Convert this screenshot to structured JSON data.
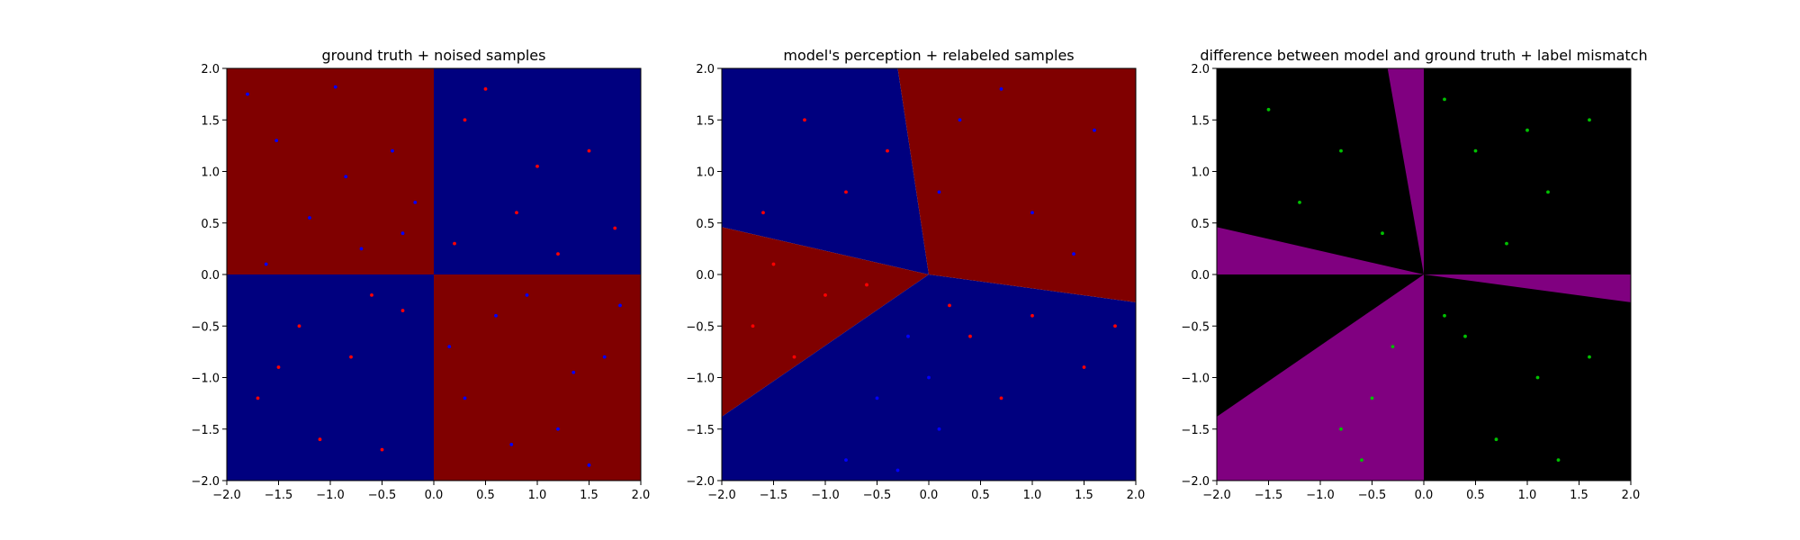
{
  "chart_data": [
    {
      "type": "scatter",
      "title": "ground truth + noised samples",
      "xlim": [
        -2.0,
        2.0
      ],
      "ylim": [
        -2.0,
        2.0
      ],
      "x_ticks": [
        "−2.0",
        "−1.5",
        "−1.0",
        "−0.5",
        "0.0",
        "0.5",
        "1.0",
        "1.5",
        "2.0"
      ],
      "y_ticks": [
        "−2.0",
        "−1.5",
        "−1.0",
        "−0.5",
        "0.0",
        "0.5",
        "1.0",
        "1.5",
        "2.0"
      ],
      "background_regions": [
        {
          "polygon": [
            [
              -2,
              0
            ],
            [
              0,
              0
            ],
            [
              0,
              2
            ],
            [
              -2,
              2
            ]
          ],
          "color": "#800000"
        },
        {
          "polygon": [
            [
              0,
              0
            ],
            [
              2,
              0
            ],
            [
              2,
              2
            ],
            [
              0,
              2
            ]
          ],
          "color": "#00007f"
        },
        {
          "polygon": [
            [
              -2,
              -2
            ],
            [
              0,
              -2
            ],
            [
              0,
              0
            ],
            [
              -2,
              0
            ]
          ],
          "color": "#00007f"
        },
        {
          "polygon": [
            [
              0,
              -2
            ],
            [
              2,
              -2
            ],
            [
              2,
              0
            ],
            [
              0,
              0
            ]
          ],
          "color": "#800000"
        }
      ],
      "series": [
        {
          "color": "#0000ff",
          "points": [
            [
              -1.8,
              1.75
            ],
            [
              -1.52,
              1.3
            ],
            [
              -1.2,
              0.55
            ],
            [
              -0.95,
              1.82
            ],
            [
              -0.7,
              0.25
            ],
            [
              -0.4,
              1.2
            ],
            [
              -0.18,
              0.7
            ],
            [
              -1.62,
              0.1
            ],
            [
              -0.85,
              0.95
            ],
            [
              -0.3,
              0.4
            ],
            [
              0.6,
              -0.4
            ],
            [
              1.2,
              -1.5
            ],
            [
              1.65,
              -0.8
            ],
            [
              0.3,
              -1.2
            ],
            [
              0.9,
              -0.2
            ],
            [
              1.5,
              -1.85
            ],
            [
              0.15,
              -0.7
            ],
            [
              1.8,
              -0.3
            ],
            [
              0.75,
              -1.65
            ],
            [
              1.35,
              -0.95
            ]
          ]
        },
        {
          "color": "#ff0000",
          "points": [
            [
              0.3,
              1.5
            ],
            [
              0.8,
              0.6
            ],
            [
              1.5,
              1.2
            ],
            [
              1.2,
              0.2
            ],
            [
              0.5,
              1.8
            ],
            [
              1.75,
              0.45
            ],
            [
              0.2,
              0.3
            ],
            [
              1.0,
              1.05
            ],
            [
              -1.3,
              -0.5
            ],
            [
              -0.5,
              -1.7
            ],
            [
              -0.8,
              -0.8
            ],
            [
              -1.7,
              -1.2
            ],
            [
              -0.3,
              -0.35
            ],
            [
              -1.1,
              -1.6
            ],
            [
              -0.6,
              -0.2
            ],
            [
              -1.5,
              -0.9
            ]
          ]
        }
      ]
    },
    {
      "type": "scatter",
      "title": "model's perception + relabeled samples",
      "xlim": [
        -2.0,
        2.0
      ],
      "ylim": [
        -2.0,
        2.0
      ],
      "x_ticks": [
        "−2.0",
        "−1.5",
        "−1.0",
        "−0.5",
        "0.0",
        "0.5",
        "1.0",
        "1.5",
        "2.0"
      ],
      "y_ticks": [
        "−2.0",
        "−1.5",
        "−1.0",
        "−0.5",
        "0.0",
        "0.5",
        "1.0",
        "1.5",
        "2.0"
      ],
      "background_regions": [
        {
          "polygon": [
            [
              0,
              0
            ],
            [
              -0.3,
              2
            ],
            [
              -2,
              2
            ],
            [
              -2,
              0.46
            ]
          ],
          "color": "#00007f"
        },
        {
          "polygon": [
            [
              0,
              0
            ],
            [
              -2,
              0.46
            ],
            [
              -2,
              -1.38
            ]
          ],
          "color": "#800000"
        },
        {
          "polygon": [
            [
              0,
              0
            ],
            [
              -2,
              -1.38
            ],
            [
              -2,
              -2
            ],
            [
              2,
              -2
            ],
            [
              2,
              -0.27
            ]
          ],
          "color": "#00007f"
        },
        {
          "polygon": [
            [
              0,
              0
            ],
            [
              2,
              -0.27
            ],
            [
              2,
              2
            ],
            [
              -0.3,
              2
            ]
          ],
          "color": "#800000"
        }
      ],
      "series": [
        {
          "color": "#ff0000",
          "points": [
            [
              -1.2,
              1.5
            ],
            [
              -0.8,
              0.8
            ],
            [
              -1.6,
              0.6
            ],
            [
              -0.4,
              1.2
            ],
            [
              -1.5,
              0.1
            ],
            [
              -1.0,
              -0.2
            ],
            [
              -1.7,
              -0.5
            ],
            [
              -0.6,
              -0.1
            ],
            [
              -1.3,
              -0.8
            ],
            [
              0.4,
              -0.6
            ],
            [
              1.0,
              -0.4
            ],
            [
              1.5,
              -0.9
            ],
            [
              0.7,
              -1.2
            ],
            [
              1.8,
              -0.5
            ],
            [
              0.2,
              -0.3
            ]
          ]
        },
        {
          "color": "#0000ff",
          "points": [
            [
              0.3,
              1.5
            ],
            [
              1.0,
              0.6
            ],
            [
              1.6,
              1.4
            ],
            [
              0.1,
              0.8
            ],
            [
              1.4,
              0.2
            ],
            [
              0.7,
              1.8
            ],
            [
              -0.2,
              -0.6
            ],
            [
              -0.5,
              -1.2
            ],
            [
              0.1,
              -1.5
            ],
            [
              -0.8,
              -1.8
            ],
            [
              0.0,
              -1.0
            ],
            [
              -0.3,
              -1.9
            ]
          ]
        }
      ]
    },
    {
      "type": "scatter",
      "title": "difference between model and ground truth + label mismatch",
      "xlim": [
        -2.0,
        2.0
      ],
      "ylim": [
        -2.0,
        2.0
      ],
      "x_ticks": [
        "−2.0",
        "−1.5",
        "−1.0",
        "−0.5",
        "0.0",
        "0.5",
        "1.0",
        "1.5",
        "2.0"
      ],
      "y_ticks": [
        "−2.0",
        "−1.5",
        "−1.0",
        "−0.5",
        "0.0",
        "0.5",
        "1.0",
        "1.5",
        "2.0"
      ],
      "background_color": "#000000",
      "background_regions": [
        {
          "polygon": [
            [
              0,
              0
            ],
            [
              -0.35,
              2
            ],
            [
              0,
              2
            ]
          ],
          "color": "#800080"
        },
        {
          "polygon": [
            [
              0,
              0
            ],
            [
              -2,
              0.46
            ],
            [
              -2,
              0
            ]
          ],
          "color": "#800080"
        },
        {
          "polygon": [
            [
              0,
              0
            ],
            [
              -2,
              -1.38
            ],
            [
              -2,
              -2
            ],
            [
              0,
              -2
            ]
          ],
          "color": "#800080"
        },
        {
          "polygon": [
            [
              0,
              0
            ],
            [
              2,
              0
            ],
            [
              2,
              -0.27
            ]
          ],
          "color": "#800080"
        }
      ],
      "series": [
        {
          "color": "#00c000",
          "points": [
            [
              -1.5,
              1.6
            ],
            [
              -0.8,
              1.2
            ],
            [
              -1.2,
              0.7
            ],
            [
              -0.4,
              0.4
            ],
            [
              0.5,
              1.2
            ],
            [
              1.2,
              0.8
            ],
            [
              0.8,
              0.3
            ],
            [
              1.6,
              1.5
            ],
            [
              0.2,
              1.7
            ],
            [
              1.0,
              1.4
            ],
            [
              0.4,
              -0.6
            ],
            [
              1.1,
              -1.0
            ],
            [
              0.7,
              -1.6
            ],
            [
              1.6,
              -0.8
            ],
            [
              1.3,
              -1.8
            ],
            [
              0.2,
              -0.4
            ],
            [
              -0.5,
              -1.2
            ],
            [
              -0.8,
              -1.5
            ],
            [
              -0.3,
              -0.7
            ],
            [
              -0.6,
              -1.8
            ]
          ]
        }
      ]
    }
  ]
}
